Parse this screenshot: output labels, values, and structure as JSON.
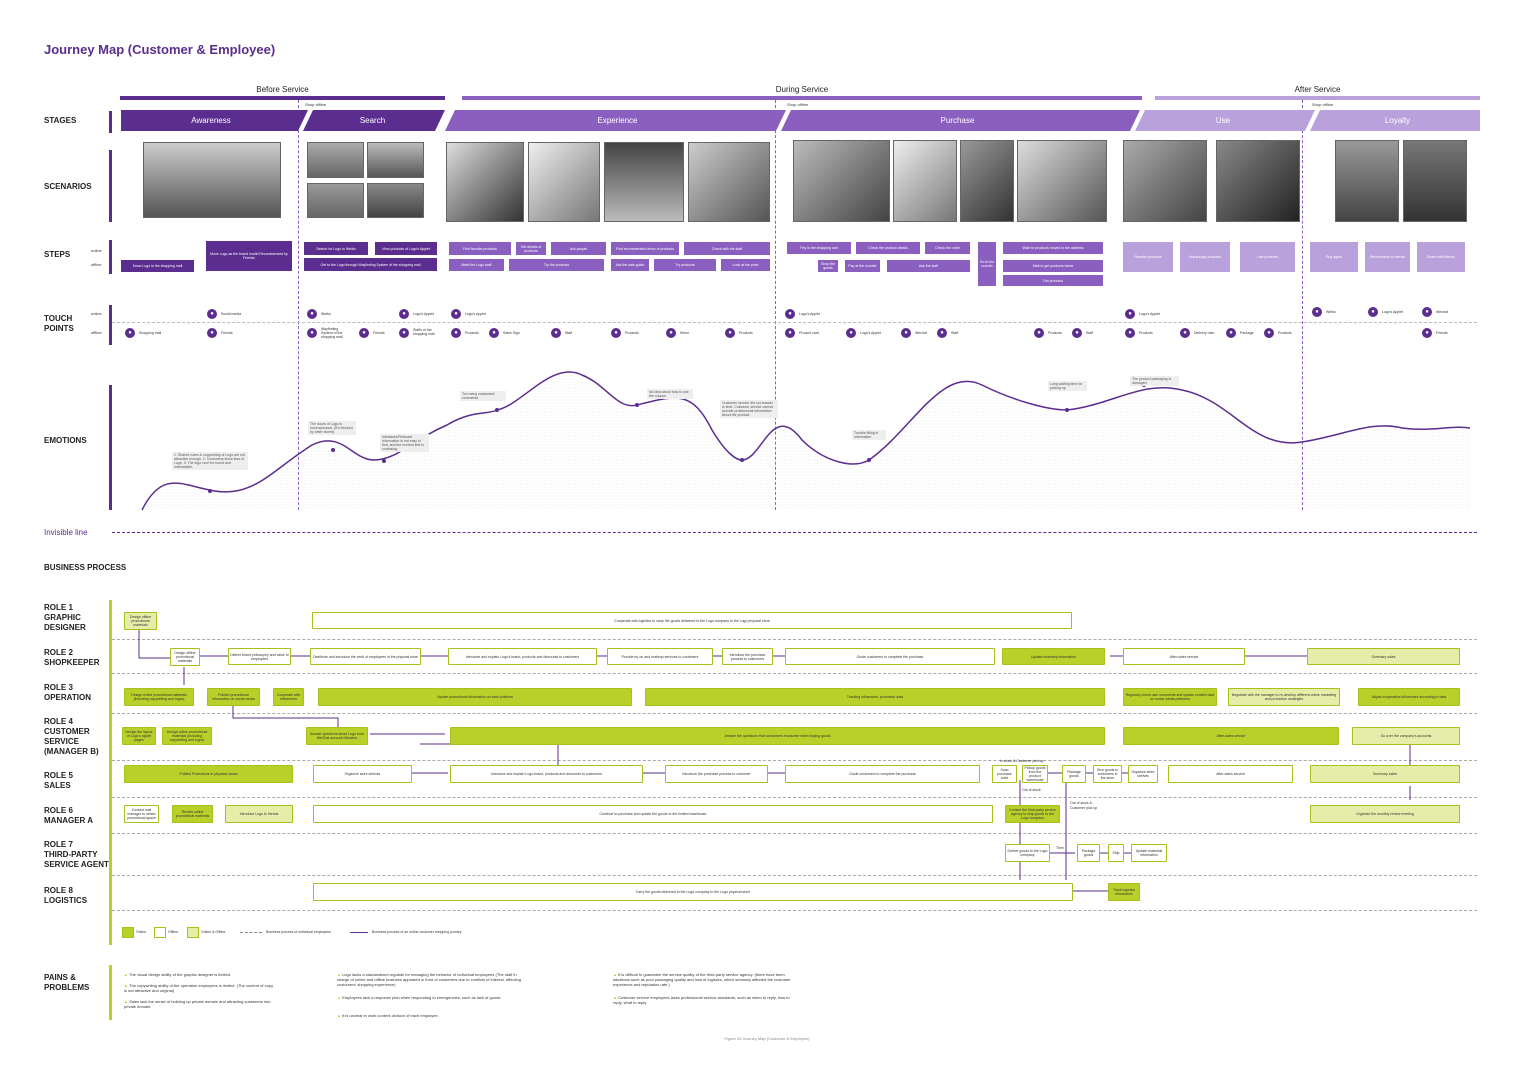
{
  "title": "Journey Map (Customer & Employee)",
  "phases": [
    {
      "label": "Before Service"
    },
    {
      "label": "During Service"
    },
    {
      "label": "After Service"
    }
  ],
  "shift_label": "Shop offline",
  "row_labels": {
    "stages": "STAGES",
    "scenarios": "SCENARIOS",
    "steps": "STEPS",
    "touch_points": [
      "TOUCH",
      "POINTS"
    ],
    "emotions": "EMOTIONS",
    "invisible_line": "Invisible line",
    "business_process": "BUSINESS PROCESS",
    "pains": [
      "PAINS &",
      "PROBLEMS"
    ],
    "online": "online",
    "offline": "offline"
  },
  "stages": [
    "Awareness",
    "Search",
    "Experience",
    "Purchase",
    "Use",
    "Loyalty"
  ],
  "steps_online": [
    "Move Lugo as the brand model Recommended by Friends",
    "Search for Lugo in Weibo",
    "View products of Lugo's Applet",
    "Find favorite products",
    "Get details of products",
    "Ask people",
    "Find recommended items of products",
    "Check with the staff",
    "Pay in the shopping cart",
    "Check the product details",
    "Check the order",
    "Wait for products moved to the address",
    "Receive products",
    "Unpackage products",
    "Use products",
    "Buy again",
    "Recommend to friends",
    "Share with friends"
  ],
  "steps_offline": [
    "Know Lugo in the shopping mall",
    "Get to the Lugo through Wayfinding System of the shopping mall",
    "Meet the Lugo staff",
    "Try the products",
    "Ask the sale guide",
    "Try products",
    "Look at the price",
    "Shop the goods",
    "Pay at the counter",
    "Ask the staff",
    "Go to the counter",
    "Wait to get products home",
    "Get products"
  ],
  "touch_points": {
    "online": [
      "Social media",
      "Weibo",
      "Lugo's Applet",
      "Lugo's Applet",
      "Lugo's Applet",
      "Lugo's Applet",
      "Weibo",
      "Lugo's Applet",
      "Wechat"
    ],
    "offline": [
      "Shopping mall",
      "Friends",
      "Wayfinding System of the shopping mall",
      "Friends",
      "Staffs of the shopping mall",
      "Products",
      "Sales Sign",
      "Staff",
      "Products",
      "Mirror",
      "Products",
      "Product card",
      "Lugo's Applet",
      "Wechat",
      "Staff",
      "Products",
      "Staff",
      "Products",
      "Delivery man",
      "Package",
      "Products",
      "Friends"
    ]
  },
  "emotion_notes": [
    "1. Shared notes & copywriting of Lugo are not attractive enough. 2. Customers know less of Lugo. 3. The logo can't be found and interactable.",
    "The doors of Lugo is inconspicuous. (It's blocked by other stores)",
    "Interfaces/Relevant information is not easy to find, and the content text is confusing.",
    "Too many customers' comments",
    "No idea about how to use the coupon",
    "Customer service did not answer in time. Customer service cannot provide professional information about the product.",
    "Trouble filling in information",
    "Long waiting time for picking up",
    "The product packaging is damaged"
  ],
  "roles": [
    {
      "lines": [
        "ROLE 1",
        "GRAPHIC",
        "DESIGNER"
      ]
    },
    {
      "lines": [
        "ROLE 2",
        "SHOPKEEPER"
      ]
    },
    {
      "lines": [
        "ROLE 3",
        "OPERATION"
      ]
    },
    {
      "lines": [
        "ROLE 4",
        "CUSTOMER",
        "SERVICE",
        "(MANAGER B)"
      ]
    },
    {
      "lines": [
        "ROLE 5",
        "SALES"
      ]
    },
    {
      "lines": [
        "ROLE 6",
        "MANAGER A"
      ]
    },
    {
      "lines": [
        "ROLE 7",
        "THIRD-PARTY",
        "SERVICE AGENT"
      ]
    },
    {
      "lines": [
        "ROLE 8",
        "LOGISTICS"
      ]
    }
  ],
  "bp": {
    "r1a": "Design offline promotional materials",
    "r1b": "Cooperate with logistics to carry the goods delivered to the Lugo company to the Lugo physical store",
    "r2a": "Design offline promotional materials",
    "r2b": "Deliver brand philosophy and value to employees",
    "r2c": "Distribute and introduce the work of employees in the physical store",
    "r2d": "Introduce and explain Lugo's brand, products and discounts to customers",
    "r2e": "Provide try-on and makeup services to customers",
    "r2f": "Introduce the purchase process to customers",
    "r2g": "Guide customers to complete the purchase",
    "r2h": "Update inventory information",
    "r2i": "After-sales service",
    "r2j": "Summary sales",
    "r3a": "Design online promotional materials (including copywriting and logos)",
    "r3b": "Publish promotional information on social media",
    "r3c": "Cooperate with influencers",
    "r3d": "Update promotional information on each platform",
    "r3e": "Tracking influencers' promotion data",
    "r3f": "Regularly check user comments and update content data on social media platforms",
    "r3g": "Negotiate with the manager to re-develop different online marketing and promotion strategies",
    "r3h": "Adjust cooperative influencers according to data",
    "r4a": "Design the layout of Lugo's applet pages",
    "r4b": "Design online promotional materials (including copywriting and logos)",
    "r4c": "Answer questions about Lugo from WeChat account followers",
    "r4d": "Answer the questions that consumers encounter when buying goods",
    "r4e": "After-sales service",
    "r4f": "Go over the company's accounts",
    "r5a": "Publish Promotions in physical stores",
    "r5b": "Organize store shelves",
    "r5c": "Introduce and explain Lugo brand, products and discounts to customers",
    "r5d": "Introduce the purchase process to customer",
    "r5e": "Guide customers to complete the purchase",
    "r5f": "Scan purchase code",
    "r5g": "Pickup goods from the product warehouse",
    "r5h": "Package goods",
    "r5i": "Give goods to customers in the store",
    "r5j": "Organize store shelves",
    "r5k": "After-sales service",
    "r5l": "Summary sales",
    "r5m": "In stock & Customer pick up",
    "r5n": "Out of stock",
    "r6a": "Contact mall manager to obtain promotional space",
    "r6b": "Review online promotional materials",
    "r6c": "Introduce Lugo to friends",
    "r6d": "Continue to purchase and update the goods to the limited warehouse",
    "r6e": "Contact the third-party service agency to ship goods to the Lugo company",
    "r6f": "Out of stock & Customer pick up",
    "r6g": "Organize the monthly review meeting",
    "r7a": "Deliver goods to the Lugo company",
    "r7b": "Then",
    "r7c": "Package goods",
    "r7d": "Ship",
    "r7e": "Update materials information",
    "r8a": "Carry the goods delivered to the Lugo company to the Lugo physical store",
    "r8b": "Track logistics information"
  },
  "legend": {
    "online": "Online",
    "offline": "Offline",
    "mixed": "Online & Offline",
    "individual": "Business process of individual employees",
    "customer": "Business process of an online customer shopping journey"
  },
  "pains": [
    "The visual design ability of the graphic designer is limited.",
    "The copywriting ability of the operation employees is limited. (The content of copy is not attractive and original)",
    "Sales lack the sense of building up private domain and attracting customers into private domain.",
    "Lugo lacks a standardized regulate for managing the behavior of individual employees (The staff in charge of online and offline business appeared in front of customers due to conflicts of interest, affecting customers' shopping experience)",
    "Employees lack a response plan when responding to emergencies, such as lack of goods.",
    "It is unclear in work content division of each employee.",
    "It is difficult to guarantee the service quality of the third-party service agency. (there have been situations such as poor packaging quality and loss of logistics, which seriously affected the customer experience and reputation rate.)",
    "Customer service employees lacks professional service standards, such as when to reply, how to reply, what to reply."
  ],
  "caption": "Figure 09 Journey Map (Customer & Employee)",
  "colors": {
    "purple_dark": "#5b2d8e",
    "purple_mid": "#8a5fc0",
    "purple_light": "#b9a1dc",
    "lime": "#b9cf2a",
    "lime_light": "#e6eda9"
  },
  "icons": [
    "people-icon",
    "search-icon",
    "shop-icon",
    "smile-icon"
  ]
}
